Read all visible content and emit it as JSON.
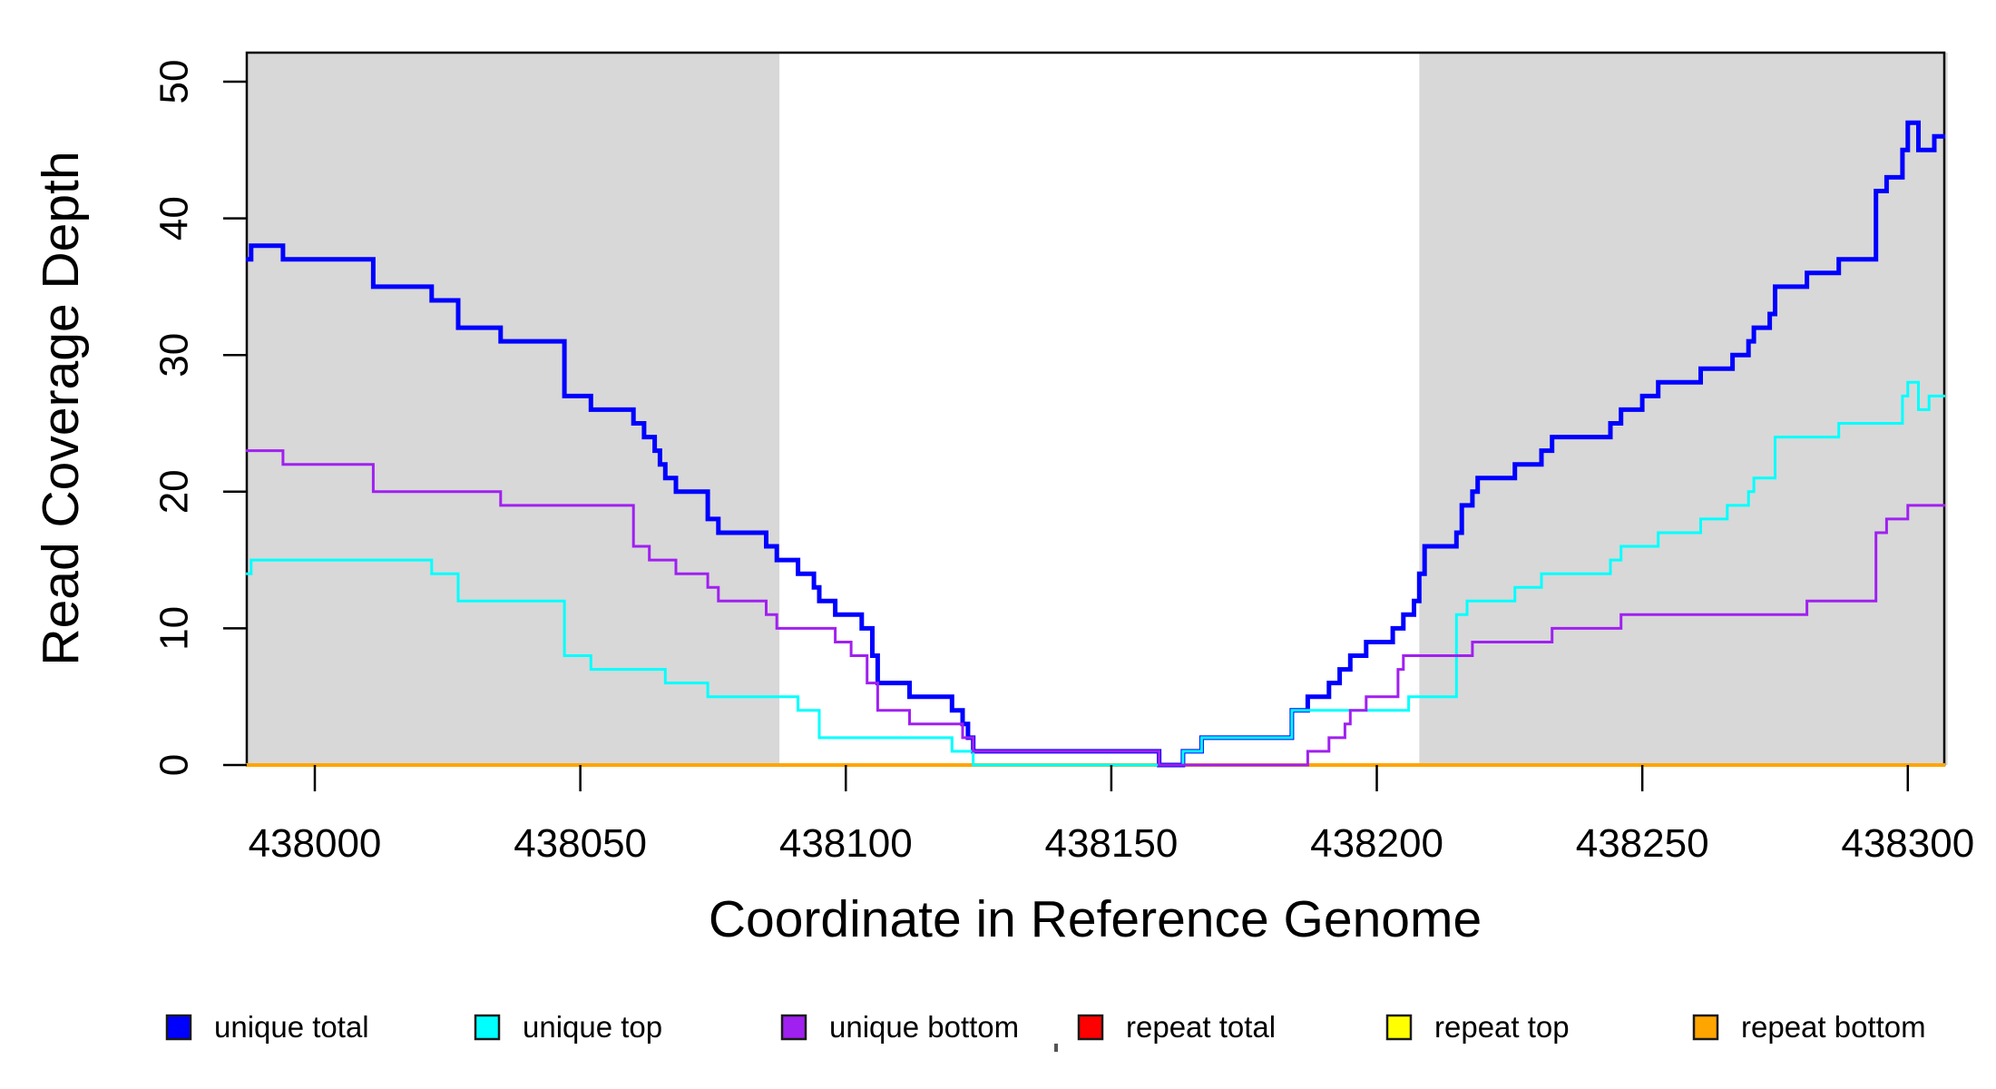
{
  "chart_data": {
    "type": "line",
    "subtype": "step",
    "title": "",
    "xlabel": "Coordinate in Reference Genome",
    "ylabel": "Read Coverage Depth",
    "xlim": [
      437987,
      438307.5
    ],
    "ylim": [
      0,
      52
    ],
    "x_ticks": [
      "438000",
      "438050",
      "438100",
      "438150",
      "438200",
      "438250",
      "438300"
    ],
    "x_tick_values": [
      438000,
      438050,
      438100,
      438150,
      438200,
      438250,
      438300
    ],
    "y_ticks": [
      "0",
      "10",
      "20",
      "30",
      "40",
      "50"
    ],
    "y_tick_values": [
      0,
      10,
      20,
      30,
      40,
      50
    ],
    "grid": false,
    "plot_background": "#ffffff",
    "shaded_regions": [
      {
        "name": "left-gray-region",
        "x0": 437987,
        "x1": 438087.5,
        "color": "#D8D8D8"
      },
      {
        "name": "right-gray-region",
        "x0": 438208,
        "x1": 438307.5,
        "color": "#D8D8D8"
      }
    ],
    "series": [
      {
        "name": "repeat total",
        "color": "#FF0000",
        "lwd": 3,
        "points": [
          [
            437987,
            0
          ]
        ]
      },
      {
        "name": "repeat top",
        "color": "#FFFF00",
        "lwd": 3,
        "points": [
          [
            437987,
            0
          ]
        ]
      },
      {
        "name": "repeat bottom",
        "color": "#FFA500",
        "lwd": 4,
        "points": [
          [
            437987,
            0
          ]
        ]
      },
      {
        "name": "unique total",
        "color": "#0000FF",
        "lwd": 5,
        "points": [
          [
            437987,
            37
          ],
          [
            437988,
            38
          ],
          [
            437994,
            37
          ],
          [
            438011,
            35
          ],
          [
            438022,
            34
          ],
          [
            438027,
            32
          ],
          [
            438035,
            31
          ],
          [
            438047,
            27
          ],
          [
            438052,
            26
          ],
          [
            438060,
            25
          ],
          [
            438062,
            24
          ],
          [
            438064,
            23
          ],
          [
            438065,
            22
          ],
          [
            438066,
            21
          ],
          [
            438068,
            20
          ],
          [
            438074,
            18
          ],
          [
            438076,
            17
          ],
          [
            438085,
            16
          ],
          [
            438087,
            15
          ],
          [
            438091,
            14
          ],
          [
            438094,
            13
          ],
          [
            438095,
            12
          ],
          [
            438098,
            11
          ],
          [
            438103,
            10
          ],
          [
            438105,
            8
          ],
          [
            438106,
            6
          ],
          [
            438112,
            5
          ],
          [
            438120,
            4
          ],
          [
            438122,
            3
          ],
          [
            438123,
            2
          ],
          [
            438124,
            1
          ],
          [
            438159,
            0
          ],
          [
            438163.5,
            1
          ],
          [
            438167,
            2
          ],
          [
            438184,
            4
          ],
          [
            438187,
            5
          ],
          [
            438191,
            6
          ],
          [
            438193,
            7
          ],
          [
            438195,
            8
          ],
          [
            438198,
            9
          ],
          [
            438203,
            10
          ],
          [
            438205,
            11
          ],
          [
            438207,
            12
          ],
          [
            438208,
            14
          ],
          [
            438209,
            16
          ],
          [
            438215,
            17
          ],
          [
            438216,
            19
          ],
          [
            438218,
            20
          ],
          [
            438219,
            21
          ],
          [
            438226,
            22
          ],
          [
            438231,
            23
          ],
          [
            438233,
            24
          ],
          [
            438244,
            25
          ],
          [
            438246,
            26
          ],
          [
            438250,
            27
          ],
          [
            438253,
            28
          ],
          [
            438261,
            29
          ],
          [
            438267,
            30
          ],
          [
            438270,
            31
          ],
          [
            438271,
            32
          ],
          [
            438274,
            33
          ],
          [
            438275,
            35
          ],
          [
            438281,
            36
          ],
          [
            438287,
            37
          ],
          [
            438294,
            42
          ],
          [
            438296,
            43
          ],
          [
            438299,
            45
          ],
          [
            438300,
            47
          ],
          [
            438302,
            45
          ],
          [
            438305,
            46
          ]
        ]
      },
      {
        "name": "unique top",
        "color": "#00FFFF",
        "lwd": 3,
        "points": [
          [
            437987,
            14
          ],
          [
            437988,
            15
          ],
          [
            438022,
            14
          ],
          [
            438027,
            12
          ],
          [
            438047,
            8
          ],
          [
            438052,
            7
          ],
          [
            438066,
            6
          ],
          [
            438074,
            5
          ],
          [
            438091,
            4
          ],
          [
            438095,
            2
          ],
          [
            438120,
            1
          ],
          [
            438124,
            0
          ],
          [
            438163.5,
            1
          ],
          [
            438167,
            2
          ],
          [
            438184,
            4
          ],
          [
            438206,
            5
          ],
          [
            438215,
            11
          ],
          [
            438217,
            12
          ],
          [
            438226,
            13
          ],
          [
            438231,
            14
          ],
          [
            438244,
            15
          ],
          [
            438246,
            16
          ],
          [
            438253,
            17
          ],
          [
            438261,
            18
          ],
          [
            438266,
            19
          ],
          [
            438270,
            20
          ],
          [
            438271,
            21
          ],
          [
            438275,
            24
          ],
          [
            438287,
            25
          ],
          [
            438299,
            27
          ],
          [
            438300,
            28
          ],
          [
            438302,
            26
          ],
          [
            438304,
            27
          ]
        ]
      },
      {
        "name": "unique bottom",
        "color": "#A020F0",
        "lwd": 3,
        "points": [
          [
            437987,
            23
          ],
          [
            437994,
            22
          ],
          [
            438011,
            20
          ],
          [
            438035,
            19
          ],
          [
            438060,
            16
          ],
          [
            438063,
            15
          ],
          [
            438068,
            14
          ],
          [
            438074,
            13
          ],
          [
            438076,
            12
          ],
          [
            438085,
            11
          ],
          [
            438087,
            10
          ],
          [
            438098,
            9
          ],
          [
            438101,
            8
          ],
          [
            438104,
            6
          ],
          [
            438106,
            4
          ],
          [
            438112,
            3
          ],
          [
            438122,
            2
          ],
          [
            438124,
            1
          ],
          [
            438159,
            0
          ],
          [
            438187,
            1
          ],
          [
            438191,
            2
          ],
          [
            438194,
            3
          ],
          [
            438195,
            4
          ],
          [
            438198,
            5
          ],
          [
            438204,
            7
          ],
          [
            438205,
            8
          ],
          [
            438218,
            9
          ],
          [
            438233,
            10
          ],
          [
            438246,
            11
          ],
          [
            438281,
            12
          ],
          [
            438294,
            17
          ],
          [
            438296,
            18
          ],
          [
            438300,
            19
          ]
        ]
      }
    ],
    "legend": {
      "position": "bottom",
      "items": [
        {
          "label": "unique total",
          "color": "#0000FF"
        },
        {
          "label": "unique top",
          "color": "#00FFFF"
        },
        {
          "label": "unique bottom",
          "color": "#A020F0"
        },
        {
          "label": "repeat total",
          "color": "#FF0000"
        },
        {
          "label": "repeat top",
          "color": "#FFFF00"
        },
        {
          "label": "repeat bottom",
          "color": "#FFA500"
        }
      ]
    }
  }
}
